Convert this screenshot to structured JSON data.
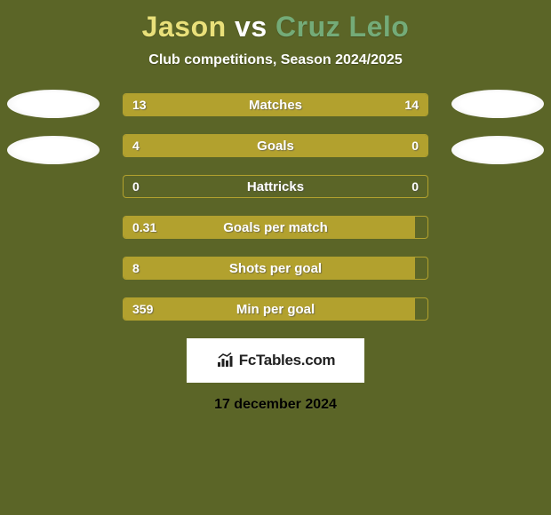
{
  "colors": {
    "background": "#5b6527",
    "accent_left": "#b2a12e",
    "accent_right": "#b2a12e",
    "bar_border": "#b2a12e",
    "title_p1": "#e9e07a",
    "title_vs": "#ffffff",
    "title_p2": "#74ab78"
  },
  "title": {
    "player1": "Jason",
    "vs": "vs",
    "player2": "Cruz Lelo"
  },
  "subtitle": "Club competitions, Season 2024/2025",
  "stats": [
    {
      "label": "Matches",
      "left_val": "13",
      "right_val": "14",
      "left_pct": 48.1,
      "right_pct": 51.9
    },
    {
      "label": "Goals",
      "left_val": "4",
      "right_val": "0",
      "left_pct": 76.0,
      "right_pct": 24.0
    },
    {
      "label": "Hattricks",
      "left_val": "0",
      "right_val": "0",
      "left_pct": 0,
      "right_pct": 0
    },
    {
      "label": "Goals per match",
      "left_val": "0.31",
      "right_val": "",
      "left_pct": 96.0,
      "right_pct": 0
    },
    {
      "label": "Shots per goal",
      "left_val": "8",
      "right_val": "",
      "left_pct": 96.0,
      "right_pct": 0
    },
    {
      "label": "Min per goal",
      "left_val": "359",
      "right_val": "",
      "left_pct": 96.0,
      "right_pct": 0
    }
  ],
  "logo_text": "FcTables.com",
  "date": "17 december 2024"
}
